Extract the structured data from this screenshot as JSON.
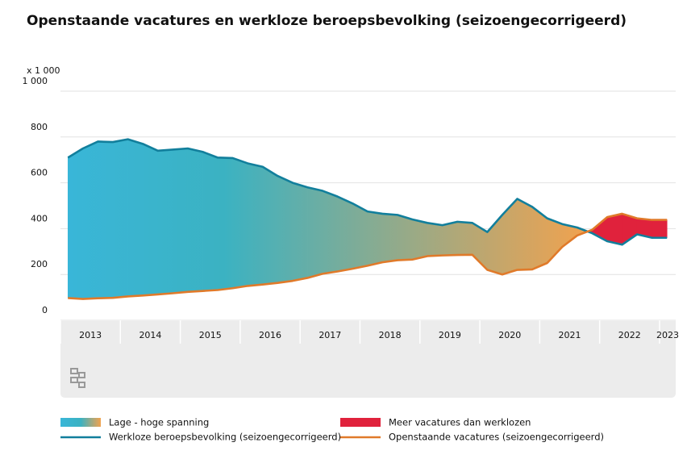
{
  "chart_data": {
    "type": "band-area",
    "title": "Openstaande vacatures en werkloze beroepsbevolking (seizoengecorrigeerd)",
    "y_unit": "x 1 000",
    "x": [
      2013.125,
      2013.375,
      2013.625,
      2013.875,
      2014.125,
      2014.375,
      2014.625,
      2014.875,
      2015.125,
      2015.375,
      2015.625,
      2015.875,
      2016.125,
      2016.375,
      2016.625,
      2016.875,
      2017.125,
      2017.375,
      2017.625,
      2017.875,
      2018.125,
      2018.375,
      2018.625,
      2018.875,
      2019.125,
      2019.375,
      2019.625,
      2019.875,
      2020.125,
      2020.375,
      2020.625,
      2020.875,
      2021.125,
      2021.375,
      2021.625,
      2021.875,
      2022.125,
      2022.375,
      2022.625,
      2022.875,
      2023.125
    ],
    "xlim": [
      2013,
      2023.27
    ],
    "xticks": [
      {
        "value": 2013,
        "label": "2013"
      },
      {
        "value": 2014,
        "label": "2014"
      },
      {
        "value": 2015,
        "label": "2015"
      },
      {
        "value": 2016,
        "label": "2016"
      },
      {
        "value": 2017,
        "label": "2017"
      },
      {
        "value": 2018,
        "label": "2018"
      },
      {
        "value": 2019,
        "label": "2019"
      },
      {
        "value": 2020,
        "label": "2020"
      },
      {
        "value": 2021,
        "label": "2021"
      },
      {
        "value": 2022,
        "label": "2022"
      },
      {
        "value": 2023,
        "label": "2023"
      }
    ],
    "ylim": [
      0,
      1000
    ],
    "yticks": [
      0,
      200,
      400,
      600,
      800,
      {
        "value": 1000,
        "label": "1 000"
      }
    ],
    "grid": true,
    "series": [
      {
        "name": "Werkloze beroepsbevolking (seizoengecorrigeerd)",
        "color": "#127f9c",
        "values": [
          710,
          750,
          780,
          778,
          790,
          770,
          740,
          745,
          750,
          735,
          710,
          708,
          685,
          670,
          630,
          600,
          580,
          565,
          540,
          510,
          475,
          465,
          460,
          440,
          425,
          415,
          430,
          425,
          385,
          460,
          530,
          495,
          445,
          420,
          405,
          380,
          345,
          330,
          375,
          360,
          360
        ]
      },
      {
        "name": "Openstaande vacatures (seizoengecorrigeerd)",
        "color": "#e07a2a",
        "values": [
          97,
          93,
          96,
          98,
          104,
          108,
          113,
          118,
          124,
          128,
          132,
          140,
          150,
          156,
          163,
          172,
          185,
          203,
          213,
          225,
          238,
          253,
          262,
          265,
          280,
          283,
          285,
          286,
          220,
          200,
          220,
          222,
          250,
          320,
          370,
          395,
          450,
          465,
          445,
          438,
          438
        ]
      }
    ],
    "areas": [
      {
        "name": "Lage - hoge spanning",
        "colors": [
          "#39b6d8",
          "#3bb2c2",
          "#f2a24e"
        ]
      },
      {
        "name": "Meer vacatures dan werklozen",
        "color": "#e0223c"
      }
    ]
  }
}
